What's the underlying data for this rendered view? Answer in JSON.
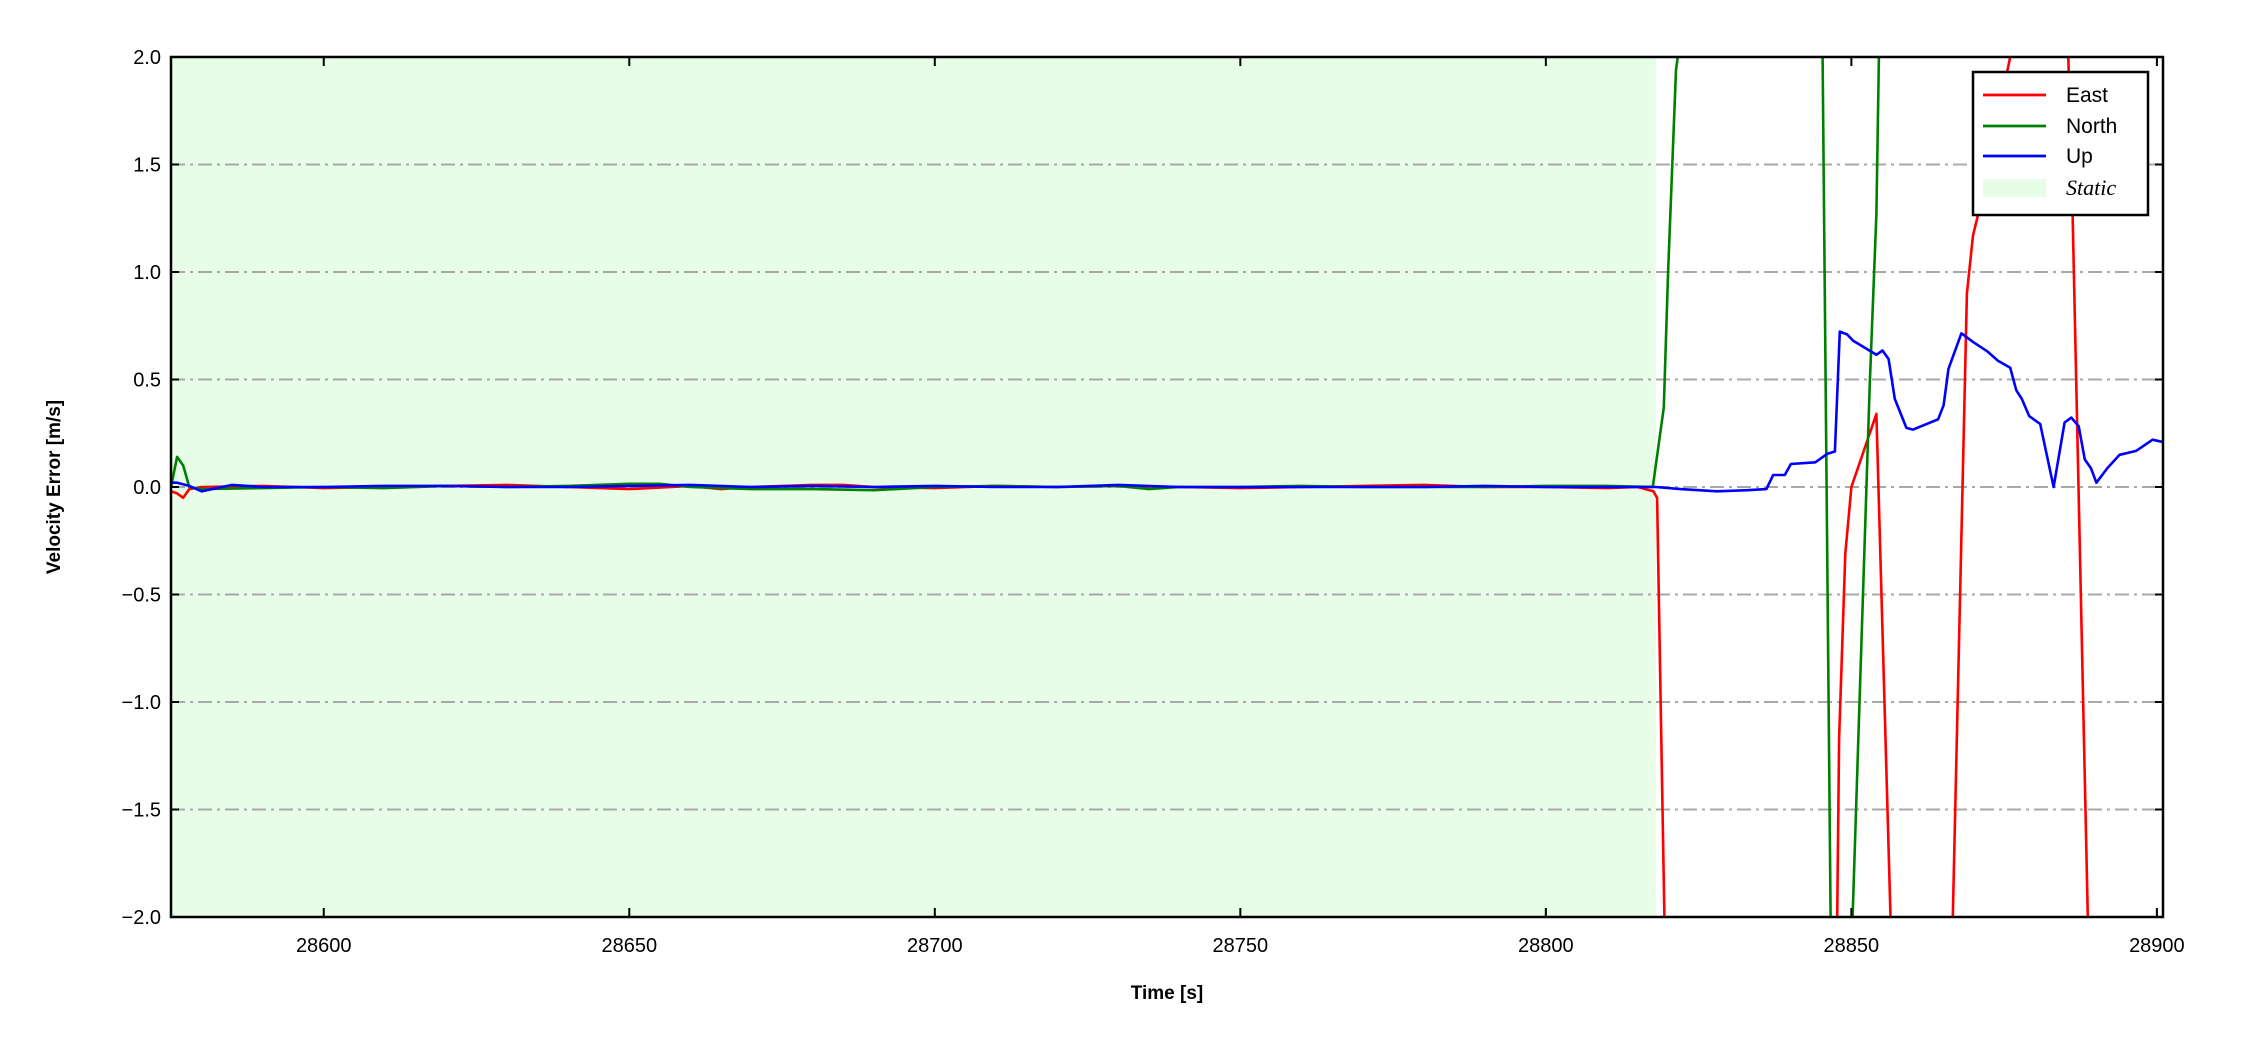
{
  "chart_data": {
    "type": "line",
    "xlabel": "Time [s]",
    "ylabel": "Velocity Error [m/s]",
    "xlim": [
      28575,
      28901
    ],
    "ylim": [
      -2.0,
      2.0
    ],
    "xticks": [
      28600,
      28650,
      28700,
      28750,
      28800,
      28850,
      28900
    ],
    "xtick_labels": [
      "28600",
      "28650",
      "28700",
      "28750",
      "28800",
      "28850",
      "28900"
    ],
    "yticks": [
      -2.0,
      -1.5,
      -1.0,
      -0.5,
      0.0,
      0.5,
      1.0,
      1.5,
      2.0
    ],
    "ytick_labels": [
      "−2.0",
      "−1.5",
      "−1.0",
      "−0.5",
      "0.0",
      "0.5",
      "1.0",
      "1.5",
      "2.0"
    ],
    "grid": "horizontal dash-dot",
    "legend_position": "top-right",
    "shaded_regions": [
      {
        "name": "Static",
        "x_start": 28575,
        "x_end": 28818,
        "color": "#e8fde8"
      }
    ],
    "series": [
      {
        "name": "East",
        "color": "#ff0000",
        "x": [
          28575,
          28576,
          28577,
          28578,
          28580,
          28590,
          28600,
          28610,
          28620,
          28630,
          28640,
          28650,
          28660,
          28665,
          28670,
          28680,
          28685,
          28690,
          28700,
          28710,
          28720,
          28730,
          28740,
          28750,
          28760,
          28770,
          28780,
          28790,
          28800,
          28810,
          28815,
          28817.6,
          28818.2,
          28819.4,
          28820,
          28847.3,
          28848,
          28849,
          28850,
          28854.1,
          28856.4,
          28857,
          28866.6,
          28868.9,
          28869.9,
          28870.6,
          28876,
          28877,
          28885.5,
          28886.2,
          28888.7,
          28889.5
        ],
        "y": [
          -0.02,
          -0.03,
          -0.05,
          -0.01,
          0.0,
          0.005,
          -0.005,
          0.0,
          0.005,
          0.01,
          0.0,
          -0.01,
          0.005,
          -0.01,
          0.0,
          0.01,
          0.01,
          0.0,
          -0.005,
          0.005,
          0.0,
          0.005,
          0.0,
          -0.005,
          0.0,
          0.005,
          0.01,
          0.0,
          0.0,
          -0.005,
          0.0,
          -0.02,
          -0.05,
          -2.0,
          -3.0,
          -3.0,
          -1.17,
          -0.31,
          0.0,
          0.34,
          -2.0,
          -3.0,
          -2.0,
          0.9,
          1.17,
          1.25,
          2.0,
          3.0,
          2.0,
          1.27,
          -2.0,
          -3.0
        ]
      },
      {
        "name": "North",
        "color": "#008000",
        "x": [
          28575,
          28576,
          28577,
          28578,
          28580,
          28590,
          28600,
          28610,
          28620,
          28630,
          28640,
          28650,
          28655,
          28660,
          28670,
          28680,
          28690,
          28700,
          28710,
          28720,
          28730,
          28735,
          28740,
          28750,
          28760,
          28770,
          28780,
          28790,
          28800,
          28810,
          28817.5,
          28819.3,
          28820,
          28821.3,
          28821.6,
          28822.5,
          28845.3,
          28846.6,
          28847,
          28850.2,
          28853,
          28854.1,
          28854.5,
          28855
        ],
        "y": [
          0.0,
          0.14,
          0.1,
          0.0,
          -0.01,
          -0.005,
          0.0,
          -0.005,
          0.005,
          0.0,
          0.005,
          0.015,
          0.015,
          0.0,
          -0.01,
          -0.01,
          -0.015,
          0.0,
          0.005,
          0.0,
          0.005,
          -0.01,
          0.0,
          0.0,
          0.005,
          0.0,
          0.0,
          0.0,
          0.005,
          0.005,
          0.0,
          0.37,
          1.0,
          1.94,
          2.0,
          3.0,
          2.0,
          -2.0,
          -3.0,
          -2.0,
          0.47,
          1.27,
          2.0,
          3.0
        ]
      },
      {
        "name": "Up",
        "color": "#0000ff",
        "x": [
          28575,
          28576,
          28578,
          28580,
          28585,
          28590,
          28600,
          28610,
          28620,
          28630,
          28640,
          28650,
          28660,
          28670,
          28680,
          28690,
          28700,
          28710,
          28720,
          28730,
          28740,
          28750,
          28760,
          28770,
          28780,
          28790,
          28800,
          28810,
          28818,
          28822,
          28828,
          28833,
          28836.1,
          28837.2,
          28839.1,
          28840.1,
          28844.1,
          28846.1,
          28847.3,
          28848.1,
          28849.3,
          28850.3,
          28854.1,
          28855.1,
          28856.1,
          28857.1,
          28859,
          28860.1,
          28864.2,
          28865.1,
          28865.9,
          28868,
          28869.9,
          28872.3,
          28874,
          28876,
          28877,
          28877.9,
          28879.1,
          28880.9,
          28883.1,
          28884.9,
          28886,
          28887.2,
          28888.2,
          28889.2,
          28890.1,
          28891.9,
          28893.9,
          28896.6,
          28899.3,
          28900.9
        ],
        "y": [
          0.02,
          0.02,
          0.005,
          -0.02,
          0.01,
          0.0,
          0.0,
          0.005,
          0.005,
          0.0,
          0.0,
          0.005,
          0.01,
          0.0,
          0.005,
          0.0,
          0.005,
          0.0,
          0.0,
          0.01,
          0.0,
          0.0,
          0.0,
          0.0,
          0.0,
          0.005,
          0.0,
          0.0,
          0.0,
          -0.01,
          -0.02,
          -0.015,
          -0.01,
          0.056,
          0.056,
          0.107,
          0.115,
          0.155,
          0.165,
          0.723,
          0.71,
          0.68,
          0.615,
          0.635,
          0.595,
          0.41,
          0.275,
          0.267,
          0.315,
          0.38,
          0.55,
          0.715,
          0.675,
          0.63,
          0.587,
          0.555,
          0.45,
          0.41,
          0.33,
          0.293,
          0.0,
          0.3,
          0.323,
          0.283,
          0.128,
          0.088,
          0.02,
          0.088,
          0.15,
          0.168,
          0.22,
          0.21
        ]
      }
    ],
    "legend": [
      {
        "label": "East",
        "color": "#ff0000",
        "kind": "line"
      },
      {
        "label": "North",
        "color": "#008000",
        "kind": "line"
      },
      {
        "label": "Up",
        "color": "#0000ff",
        "kind": "line"
      },
      {
        "label": "Static",
        "color": "#e8fde8",
        "kind": "patch"
      }
    ]
  }
}
